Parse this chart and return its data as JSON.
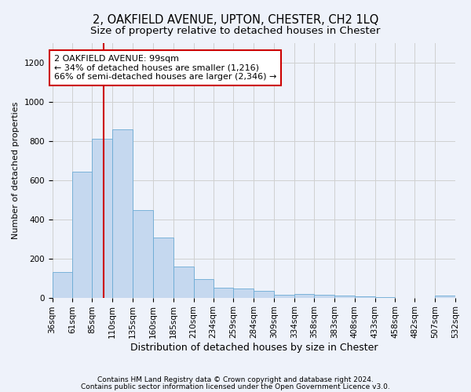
{
  "title": "2, OAKFIELD AVENUE, UPTON, CHESTER, CH2 1LQ",
  "subtitle": "Size of property relative to detached houses in Chester",
  "xlabel": "Distribution of detached houses by size in Chester",
  "ylabel": "Number of detached properties",
  "footer_line1": "Contains HM Land Registry data © Crown copyright and database right 2024.",
  "footer_line2": "Contains public sector information licensed under the Open Government Licence v3.0.",
  "bar_color": "#c5d8ef",
  "bar_edge_color": "#6aaad4",
  "vline_x": 99,
  "vline_color": "#cc0000",
  "annotation_text": "2 OAKFIELD AVENUE: 99sqm\n← 34% of detached houses are smaller (1,216)\n66% of semi-detached houses are larger (2,346) →",
  "annotation_box_color": "#cc0000",
  "bin_edges": [
    36,
    61,
    85,
    110,
    135,
    160,
    185,
    210,
    234,
    259,
    284,
    309,
    334,
    358,
    383,
    408,
    433,
    458,
    482,
    507,
    532
  ],
  "bar_heights": [
    130,
    645,
    810,
    860,
    445,
    305,
    158,
    93,
    51,
    45,
    35,
    14,
    20,
    15,
    10,
    8,
    2,
    0,
    0,
    10
  ],
  "ylim": [
    0,
    1300
  ],
  "yticks": [
    0,
    200,
    400,
    600,
    800,
    1000,
    1200
  ],
  "grid_color": "#d0d0d0",
  "background_color": "#eef2fa",
  "title_fontsize": 10.5,
  "subtitle_fontsize": 9.5,
  "tick_fontsize": 7.5,
  "ylabel_fontsize": 8,
  "xlabel_fontsize": 9
}
